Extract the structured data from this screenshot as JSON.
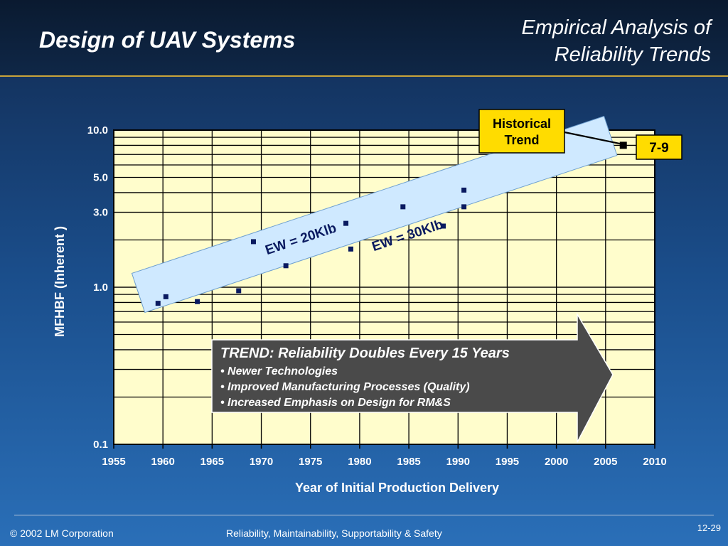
{
  "header": {
    "slide_title": "Design of UAV Systems",
    "section_title_line1": "Empirical Analysis of",
    "section_title_line2": "Reliability Trends"
  },
  "footer": {
    "copyright": "© 2002 LM Corporation",
    "course": "Reliability, Maintainability, Supportability & Safety",
    "slide_number": "12-29"
  },
  "colors": {
    "plot_bg": "#fffdcc",
    "band": "#cfe9ff",
    "point": "#0a1a60",
    "callout_bg": "#ffdc00",
    "arrow_box": "#4a4a4a"
  },
  "chart_data": {
    "type": "scatter",
    "x_scale": "linear",
    "y_scale": "log",
    "xlim": [
      1955,
      2010
    ],
    "ylim": [
      0.1,
      10.0
    ],
    "xlabel": "Year of Initial Production Delivery",
    "ylabel": "MFHBF (Inherent )",
    "x_ticks": [
      "1955",
      "1960",
      "1965",
      "1970",
      "1975",
      "1980",
      "1985",
      "1990",
      "1995",
      "2000",
      "2005",
      "2010"
    ],
    "y_tick_labels": [
      {
        "value": 10.0,
        "label": "10.0"
      },
      {
        "value": 5.0,
        "label": "5.0"
      },
      {
        "value": 3.0,
        "label": "3.0"
      },
      {
        "value": 1.0,
        "label": "1.0"
      },
      {
        "value": 0.1,
        "label": "0.1"
      }
    ],
    "grid": true,
    "points": [
      {
        "x": 1959.5,
        "y": 0.79
      },
      {
        "x": 1960.3,
        "y": 0.87
      },
      {
        "x": 1963.5,
        "y": 0.81
      },
      {
        "x": 1967.7,
        "y": 0.95
      },
      {
        "x": 1969.2,
        "y": 1.95
      },
      {
        "x": 1972.5,
        "y": 1.37
      },
      {
        "x": 1978.6,
        "y": 2.55
      },
      {
        "x": 1979.1,
        "y": 1.75
      },
      {
        "x": 1984.4,
        "y": 3.25
      },
      {
        "x": 1988.5,
        "y": 2.45
      },
      {
        "x": 1990.6,
        "y": 4.15
      },
      {
        "x": 1990.6,
        "y": 3.25
      }
    ],
    "highlight_point": {
      "x": 2006.8,
      "y": 8.0
    },
    "trend_band": {
      "start": {
        "x": 1957.5,
        "y": 0.92
      },
      "end": {
        "x": 2005.5,
        "y": 9.2
      }
    },
    "band_labels": [
      "EW = 20Klb",
      "EW = 30Klb"
    ],
    "callouts": {
      "historical_trend": [
        "Historical",
        "Trend"
      ],
      "marker_label": "7-9"
    },
    "trend_box": {
      "title": "TREND: Reliability Doubles Every 15 Years",
      "bullets": [
        "• Newer Technologies",
        "• Improved Manufacturing Processes (Quality)",
        "• Increased Emphasis on Design for RM&S"
      ]
    }
  }
}
